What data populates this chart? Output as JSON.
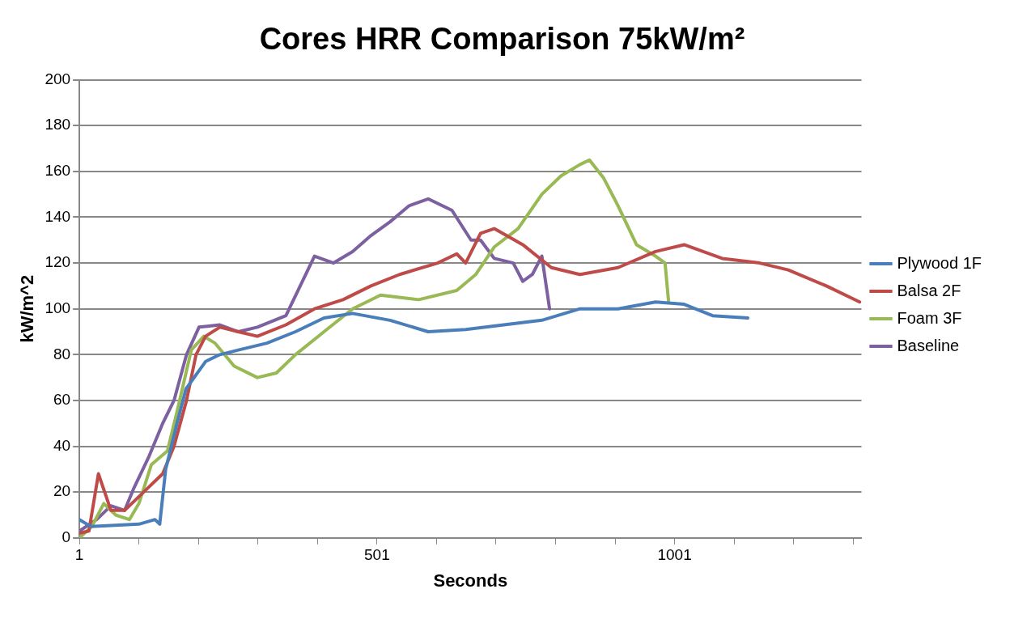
{
  "chart_data": {
    "type": "line",
    "title": "Cores HRR Comparison 75kW/m²",
    "xlabel": "Seconds",
    "ylabel": "kW/m^2",
    "xlim": [
      1,
      1315
    ],
    "xticks": [
      1,
      {
        "value": 101,
        "label": null
      },
      {
        "value": 201,
        "label": null
      },
      {
        "value": 301,
        "label": null
      },
      {
        "value": 401,
        "label": null
      },
      501,
      {
        "value": 601,
        "label": null
      },
      {
        "value": 701,
        "label": null
      },
      {
        "value": 801,
        "label": null
      },
      {
        "value": 901,
        "label": null
      },
      1001,
      {
        "value": 1101,
        "label": null
      },
      {
        "value": 1201,
        "label": null
      },
      {
        "value": 1301,
        "label": null
      }
    ],
    "ylim": [
      0,
      200
    ],
    "yticks": [
      0,
      20,
      40,
      60,
      80,
      100,
      120,
      140,
      160,
      180,
      200
    ],
    "grid": "y",
    "legend": "right",
    "marker": "none",
    "line_style": "solid",
    "series": [
      {
        "name": "Plywood 1F",
        "color": "#4a7ebb",
        "x": [
          1,
          20,
          101,
          128,
          136,
          146,
          165,
          180,
          213,
          237,
          268,
          316,
          364,
          412,
          460,
          523,
          587,
          650,
          714,
          778,
          842,
          906,
          969,
          1017,
          1065,
          1124
        ],
        "values": [
          8,
          5,
          6,
          8,
          6,
          30,
          50,
          65,
          77,
          80,
          82,
          85,
          90,
          96,
          98,
          95,
          90,
          91,
          93,
          95,
          100,
          100,
          103,
          102,
          97,
          96
        ]
      },
      {
        "name": "Balsa 2F",
        "color": "#be4b48",
        "x": [
          1,
          17,
          33,
          54,
          77,
          109,
          141,
          160,
          181,
          197,
          213,
          237,
          268,
          300,
          348,
          396,
          444,
          491,
          539,
          603,
          635,
          650,
          675,
          698,
          746,
          794,
          842,
          906,
          969,
          1017,
          1081,
          1144,
          1192,
          1256,
          1312
        ],
        "values": [
          2,
          3,
          28,
          12,
          12,
          20,
          28,
          40,
          60,
          80,
          88,
          92,
          90,
          88,
          93,
          100,
          104,
          110,
          115,
          120,
          124,
          120,
          133,
          135,
          128,
          118,
          115,
          118,
          125,
          128,
          122,
          120,
          117,
          110,
          103
        ]
      },
      {
        "name": "Foam 3F",
        "color": "#98b954",
        "x": [
          1,
          22,
          42,
          62,
          85,
          101,
          122,
          149,
          165,
          189,
          210,
          229,
          261,
          300,
          332,
          364,
          412,
          460,
          507,
          571,
          635,
          667,
          698,
          738,
          778,
          810,
          842,
          858,
          882,
          906,
          937,
          969,
          985,
          991
        ],
        "values": [
          0,
          5,
          15,
          10,
          8,
          15,
          32,
          38,
          55,
          82,
          88,
          85,
          75,
          70,
          72,
          80,
          90,
          100,
          106,
          104,
          108,
          115,
          127,
          135,
          150,
          158,
          163,
          165,
          157,
          145,
          128,
          123,
          120,
          103
        ]
      },
      {
        "name": "Baseline",
        "color": "#7d60a0",
        "x": [
          1,
          30,
          54,
          77,
          93,
          117,
          141,
          160,
          181,
          202,
          237,
          268,
          300,
          348,
          372,
          396,
          428,
          460,
          491,
          523,
          555,
          587,
          627,
          659,
          675,
          698,
          730,
          746,
          762,
          778,
          791
        ],
        "values": [
          3,
          8,
          14,
          12,
          22,
          35,
          50,
          60,
          80,
          92,
          93,
          90,
          92,
          97,
          110,
          123,
          120,
          125,
          132,
          138,
          145,
          148,
          143,
          130,
          130,
          122,
          120,
          112,
          115,
          123,
          100
        ]
      }
    ]
  }
}
